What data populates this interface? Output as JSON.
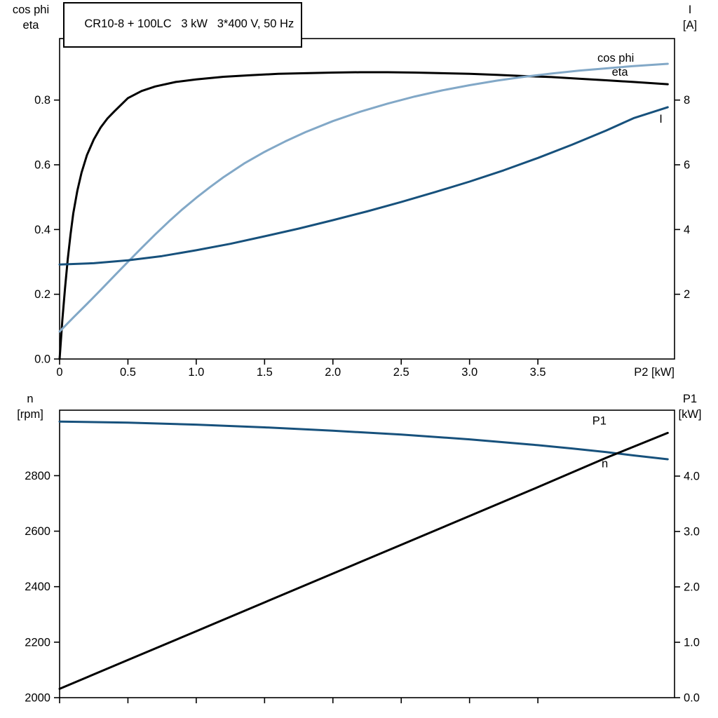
{
  "chart_data": [
    {
      "id": "motor-electrical-curves",
      "type": "line",
      "title": "CR10-8 + 100LC   3 kW   3*400 V, 50 Hz",
      "x_axis": {
        "label": "P2 [kW]",
        "range": [
          0,
          4.5
        ],
        "ticks": [
          0,
          0.5,
          1,
          1.5,
          2,
          2.5,
          3,
          3.5
        ],
        "tick_labels": [
          "0",
          "0.5",
          "1.0",
          "1.5",
          "2.0",
          "2.5",
          "3.0",
          "3.5"
        ],
        "show_tick_labels": true
      },
      "left_axis": {
        "label_lines": [
          "cos phi",
          "eta"
        ],
        "range": [
          0,
          0.99
        ],
        "ticks": [
          0,
          0.2,
          0.4,
          0.6,
          0.8
        ],
        "tick_labels": [
          "0.0",
          "0.2",
          "0.4",
          "0.6",
          "0.8"
        ]
      },
      "right_axis": {
        "label_lines": [
          "I",
          "[A]"
        ],
        "range": [
          0,
          9.9
        ],
        "ticks": [
          2,
          4,
          6,
          8
        ],
        "tick_labels": [
          "2",
          "4",
          "6",
          "8"
        ]
      },
      "series": [
        {
          "name": "eta",
          "axis": "left",
          "color": "#000000",
          "width": 3,
          "label": {
            "text": "eta",
            "x": 4.1,
            "y": 0.875,
            "anchor": "middle"
          },
          "points": [
            [
              0,
              0
            ],
            [
              0.02,
              0.12
            ],
            [
              0.04,
              0.22
            ],
            [
              0.06,
              0.31
            ],
            [
              0.08,
              0.385
            ],
            [
              0.1,
              0.45
            ],
            [
              0.13,
              0.52
            ],
            [
              0.16,
              0.575
            ],
            [
              0.2,
              0.63
            ],
            [
              0.25,
              0.678
            ],
            [
              0.3,
              0.715
            ],
            [
              0.35,
              0.743
            ],
            [
              0.4,
              0.765
            ],
            [
              0.5,
              0.806
            ],
            [
              0.6,
              0.828
            ],
            [
              0.7,
              0.842
            ],
            [
              0.85,
              0.856
            ],
            [
              1.0,
              0.864
            ],
            [
              1.2,
              0.872
            ],
            [
              1.4,
              0.877
            ],
            [
              1.6,
              0.881
            ],
            [
              1.8,
              0.883
            ],
            [
              2.0,
              0.885
            ],
            [
              2.2,
              0.886
            ],
            [
              2.4,
              0.886
            ],
            [
              2.6,
              0.885
            ],
            [
              2.8,
              0.883
            ],
            [
              3.0,
              0.881
            ],
            [
              3.2,
              0.878
            ],
            [
              3.4,
              0.874
            ],
            [
              3.6,
              0.871
            ],
            [
              3.8,
              0.866
            ],
            [
              4.0,
              0.861
            ],
            [
              4.2,
              0.856
            ],
            [
              4.45,
              0.849
            ]
          ]
        },
        {
          "name": "cos phi",
          "axis": "left",
          "color": "#82a8c7",
          "width": 3,
          "label": {
            "text": "cos phi",
            "x": 4.07,
            "y": 0.918,
            "anchor": "middle"
          },
          "points": [
            [
              0,
              0.085
            ],
            [
              0.1,
              0.128
            ],
            [
              0.2,
              0.17
            ],
            [
              0.3,
              0.213
            ],
            [
              0.4,
              0.257
            ],
            [
              0.5,
              0.3
            ],
            [
              0.6,
              0.343
            ],
            [
              0.7,
              0.385
            ],
            [
              0.8,
              0.425
            ],
            [
              0.9,
              0.463
            ],
            [
              1.0,
              0.498
            ],
            [
              1.1,
              0.531
            ],
            [
              1.2,
              0.562
            ],
            [
              1.35,
              0.604
            ],
            [
              1.5,
              0.64
            ],
            [
              1.65,
              0.672
            ],
            [
              1.8,
              0.701
            ],
            [
              2.0,
              0.735
            ],
            [
              2.2,
              0.764
            ],
            [
              2.4,
              0.789
            ],
            [
              2.6,
              0.811
            ],
            [
              2.8,
              0.83
            ],
            [
              3.0,
              0.846
            ],
            [
              3.2,
              0.86
            ],
            [
              3.4,
              0.872
            ],
            [
              3.6,
              0.882
            ],
            [
              3.8,
              0.891
            ],
            [
              4.0,
              0.898
            ],
            [
              4.2,
              0.905
            ],
            [
              4.45,
              0.912
            ]
          ]
        },
        {
          "name": "I",
          "axis": "right",
          "color": "#17517c",
          "width": 3,
          "label": {
            "text": "I",
            "x": 4.4,
            "y": 7.3,
            "anchor": "middle"
          },
          "points": [
            [
              0,
              2.92
            ],
            [
              0.25,
              2.96
            ],
            [
              0.5,
              3.05
            ],
            [
              0.75,
              3.18
            ],
            [
              1.0,
              3.36
            ],
            [
              1.25,
              3.56
            ],
            [
              1.5,
              3.79
            ],
            [
              1.75,
              4.03
            ],
            [
              2.0,
              4.29
            ],
            [
              2.25,
              4.56
            ],
            [
              2.5,
              4.85
            ],
            [
              2.75,
              5.16
            ],
            [
              3.0,
              5.48
            ],
            [
              3.25,
              5.83
            ],
            [
              3.5,
              6.21
            ],
            [
              3.75,
              6.62
            ],
            [
              4.0,
              7.06
            ],
            [
              4.2,
              7.44
            ],
            [
              4.45,
              7.78
            ]
          ]
        }
      ]
    },
    {
      "id": "speed-power-curves",
      "type": "line",
      "title": "",
      "x_axis": {
        "label": "",
        "range": [
          0,
          4.5
        ],
        "ticks": [
          0,
          0.5,
          1,
          1.5,
          2,
          2.5,
          3,
          3.5
        ],
        "tick_labels": [],
        "show_tick_labels": false
      },
      "left_axis": {
        "label_lines": [
          "n",
          "[rpm]"
        ],
        "range": [
          2000,
          3036
        ],
        "ticks": [
          2000,
          2200,
          2400,
          2600,
          2800
        ],
        "tick_labels": [
          "2000",
          "2200",
          "2400",
          "2600",
          "2800"
        ]
      },
      "right_axis": {
        "label_lines": [
          "P1",
          "[kW]"
        ],
        "range": [
          0,
          5.19
        ],
        "ticks": [
          0,
          1,
          2,
          3,
          4
        ],
        "tick_labels": [
          "0.0",
          "1.0",
          "2.0",
          "3.0",
          "4.0"
        ]
      },
      "series": [
        {
          "name": "n",
          "axis": "left",
          "color": "#17517c",
          "width": 3,
          "label": {
            "text": "n",
            "x": 3.99,
            "y": 2830,
            "anchor": "middle"
          },
          "points": [
            [
              0,
              2995
            ],
            [
              0.5,
              2991
            ],
            [
              1.0,
              2984
            ],
            [
              1.5,
              2974
            ],
            [
              2.0,
              2962
            ],
            [
              2.5,
              2948
            ],
            [
              3.0,
              2931
            ],
            [
              3.5,
              2910
            ],
            [
              3.75,
              2898
            ],
            [
              4.0,
              2885
            ],
            [
              4.2,
              2873
            ],
            [
              4.45,
              2859
            ]
          ]
        },
        {
          "name": "P1",
          "axis": "right",
          "color": "#000000",
          "width": 3,
          "label": {
            "text": "P1",
            "x": 3.95,
            "y": 4.93,
            "anchor": "middle"
          },
          "points": [
            [
              0,
              0.16
            ],
            [
              0.5,
              0.68
            ],
            [
              1.0,
              1.2
            ],
            [
              1.5,
              1.72
            ],
            [
              2.0,
              2.24
            ],
            [
              2.5,
              2.76
            ],
            [
              3.0,
              3.28
            ],
            [
              3.5,
              3.8
            ],
            [
              4.0,
              4.33
            ],
            [
              4.45,
              4.78
            ]
          ]
        }
      ]
    }
  ]
}
